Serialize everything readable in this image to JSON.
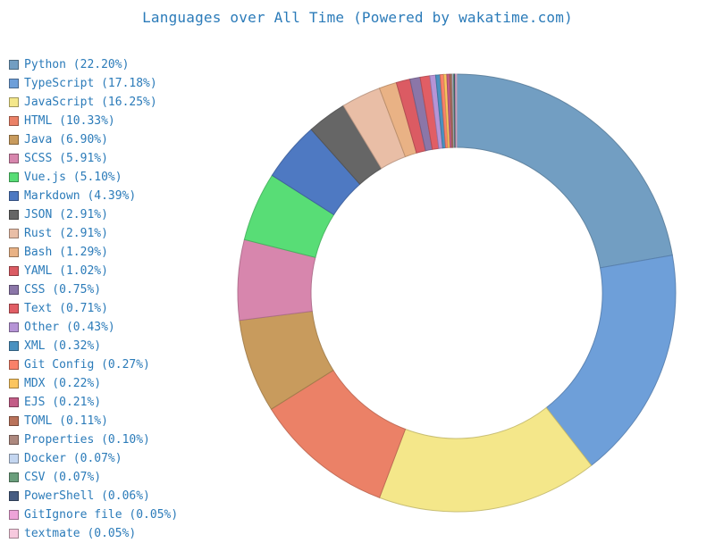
{
  "chart_data": {
    "type": "pie",
    "subtype": "donut",
    "title": "Languages over All Time (Powered by wakatime.com)",
    "legend_position": "left",
    "slices": [
      {
        "label": "Python (22.20%)",
        "name": "Python",
        "value": 22.2,
        "color": "#729ec2"
      },
      {
        "label": "TypeScript (17.18%)",
        "name": "TypeScript",
        "value": 17.18,
        "color": "#6e9fd9"
      },
      {
        "label": "JavaScript (16.25%)",
        "name": "JavaScript",
        "value": 16.25,
        "color": "#f4e78a"
      },
      {
        "label": "HTML (10.33%)",
        "name": "HTML",
        "value": 10.33,
        "color": "#eb8167"
      },
      {
        "label": "Java (6.90%)",
        "name": "Java",
        "value": 6.9,
        "color": "#c89b5d"
      },
      {
        "label": "SCSS (5.91%)",
        "name": "SCSS",
        "value": 5.91,
        "color": "#d786ad"
      },
      {
        "label": "Vue.js (5.10%)",
        "name": "Vue.js",
        "value": 5.1,
        "color": "#58dd76"
      },
      {
        "label": "Markdown (4.39%)",
        "name": "Markdown",
        "value": 4.39,
        "color": "#4e79c2"
      },
      {
        "label": "JSON (2.91%)",
        "name": "JSON",
        "value": 2.91,
        "color": "#666666"
      },
      {
        "label": "Rust (2.91%)",
        "name": "Rust",
        "value": 2.91,
        "color": "#e9bea6"
      },
      {
        "label": "Bash (1.29%)",
        "name": "Bash",
        "value": 1.29,
        "color": "#e9b285"
      },
      {
        "label": "YAML (1.02%)",
        "name": "YAML",
        "value": 1.02,
        "color": "#db5b63"
      },
      {
        "label": "CSS (0.75%)",
        "name": "CSS",
        "value": 0.75,
        "color": "#8b76a8"
      },
      {
        "label": "Text (0.71%)",
        "name": "Text",
        "value": 0.71,
        "color": "#e15e65"
      },
      {
        "label": "Other (0.43%)",
        "name": "Other",
        "value": 0.43,
        "color": "#b694d6"
      },
      {
        "label": "XML (0.32%)",
        "name": "XML",
        "value": 0.32,
        "color": "#4a91c0"
      },
      {
        "label": "Git Config (0.27%)",
        "name": "Git Config",
        "value": 0.27,
        "color": "#f9816a"
      },
      {
        "label": "MDX (0.22%)",
        "name": "MDX",
        "value": 0.22,
        "color": "#fbc55f"
      },
      {
        "label": "EJS (0.21%)",
        "name": "EJS",
        "value": 0.21,
        "color": "#c35d87"
      },
      {
        "label": "TOML (0.11%)",
        "name": "TOML",
        "value": 0.11,
        "color": "#b9725a"
      },
      {
        "label": "Properties (0.10%)",
        "name": "Properties",
        "value": 0.1,
        "color": "#ad887e"
      },
      {
        "label": "Docker (0.07%)",
        "name": "Docker",
        "value": 0.07,
        "color": "#c4d6f0"
      },
      {
        "label": "CSV (0.07%)",
        "name": "CSV",
        "value": 0.07,
        "color": "#6a9e7c"
      },
      {
        "label": "PowerShell (0.06%)",
        "name": "PowerShell",
        "value": 0.06,
        "color": "#465c82"
      },
      {
        "label": "GitIgnore file (0.05%)",
        "name": "GitIgnore file",
        "value": 0.05,
        "color": "#eea3d9"
      },
      {
        "label": "textmate (0.05%)",
        "name": "textmate",
        "value": 0.05,
        "color": "#f7c9de"
      }
    ]
  }
}
